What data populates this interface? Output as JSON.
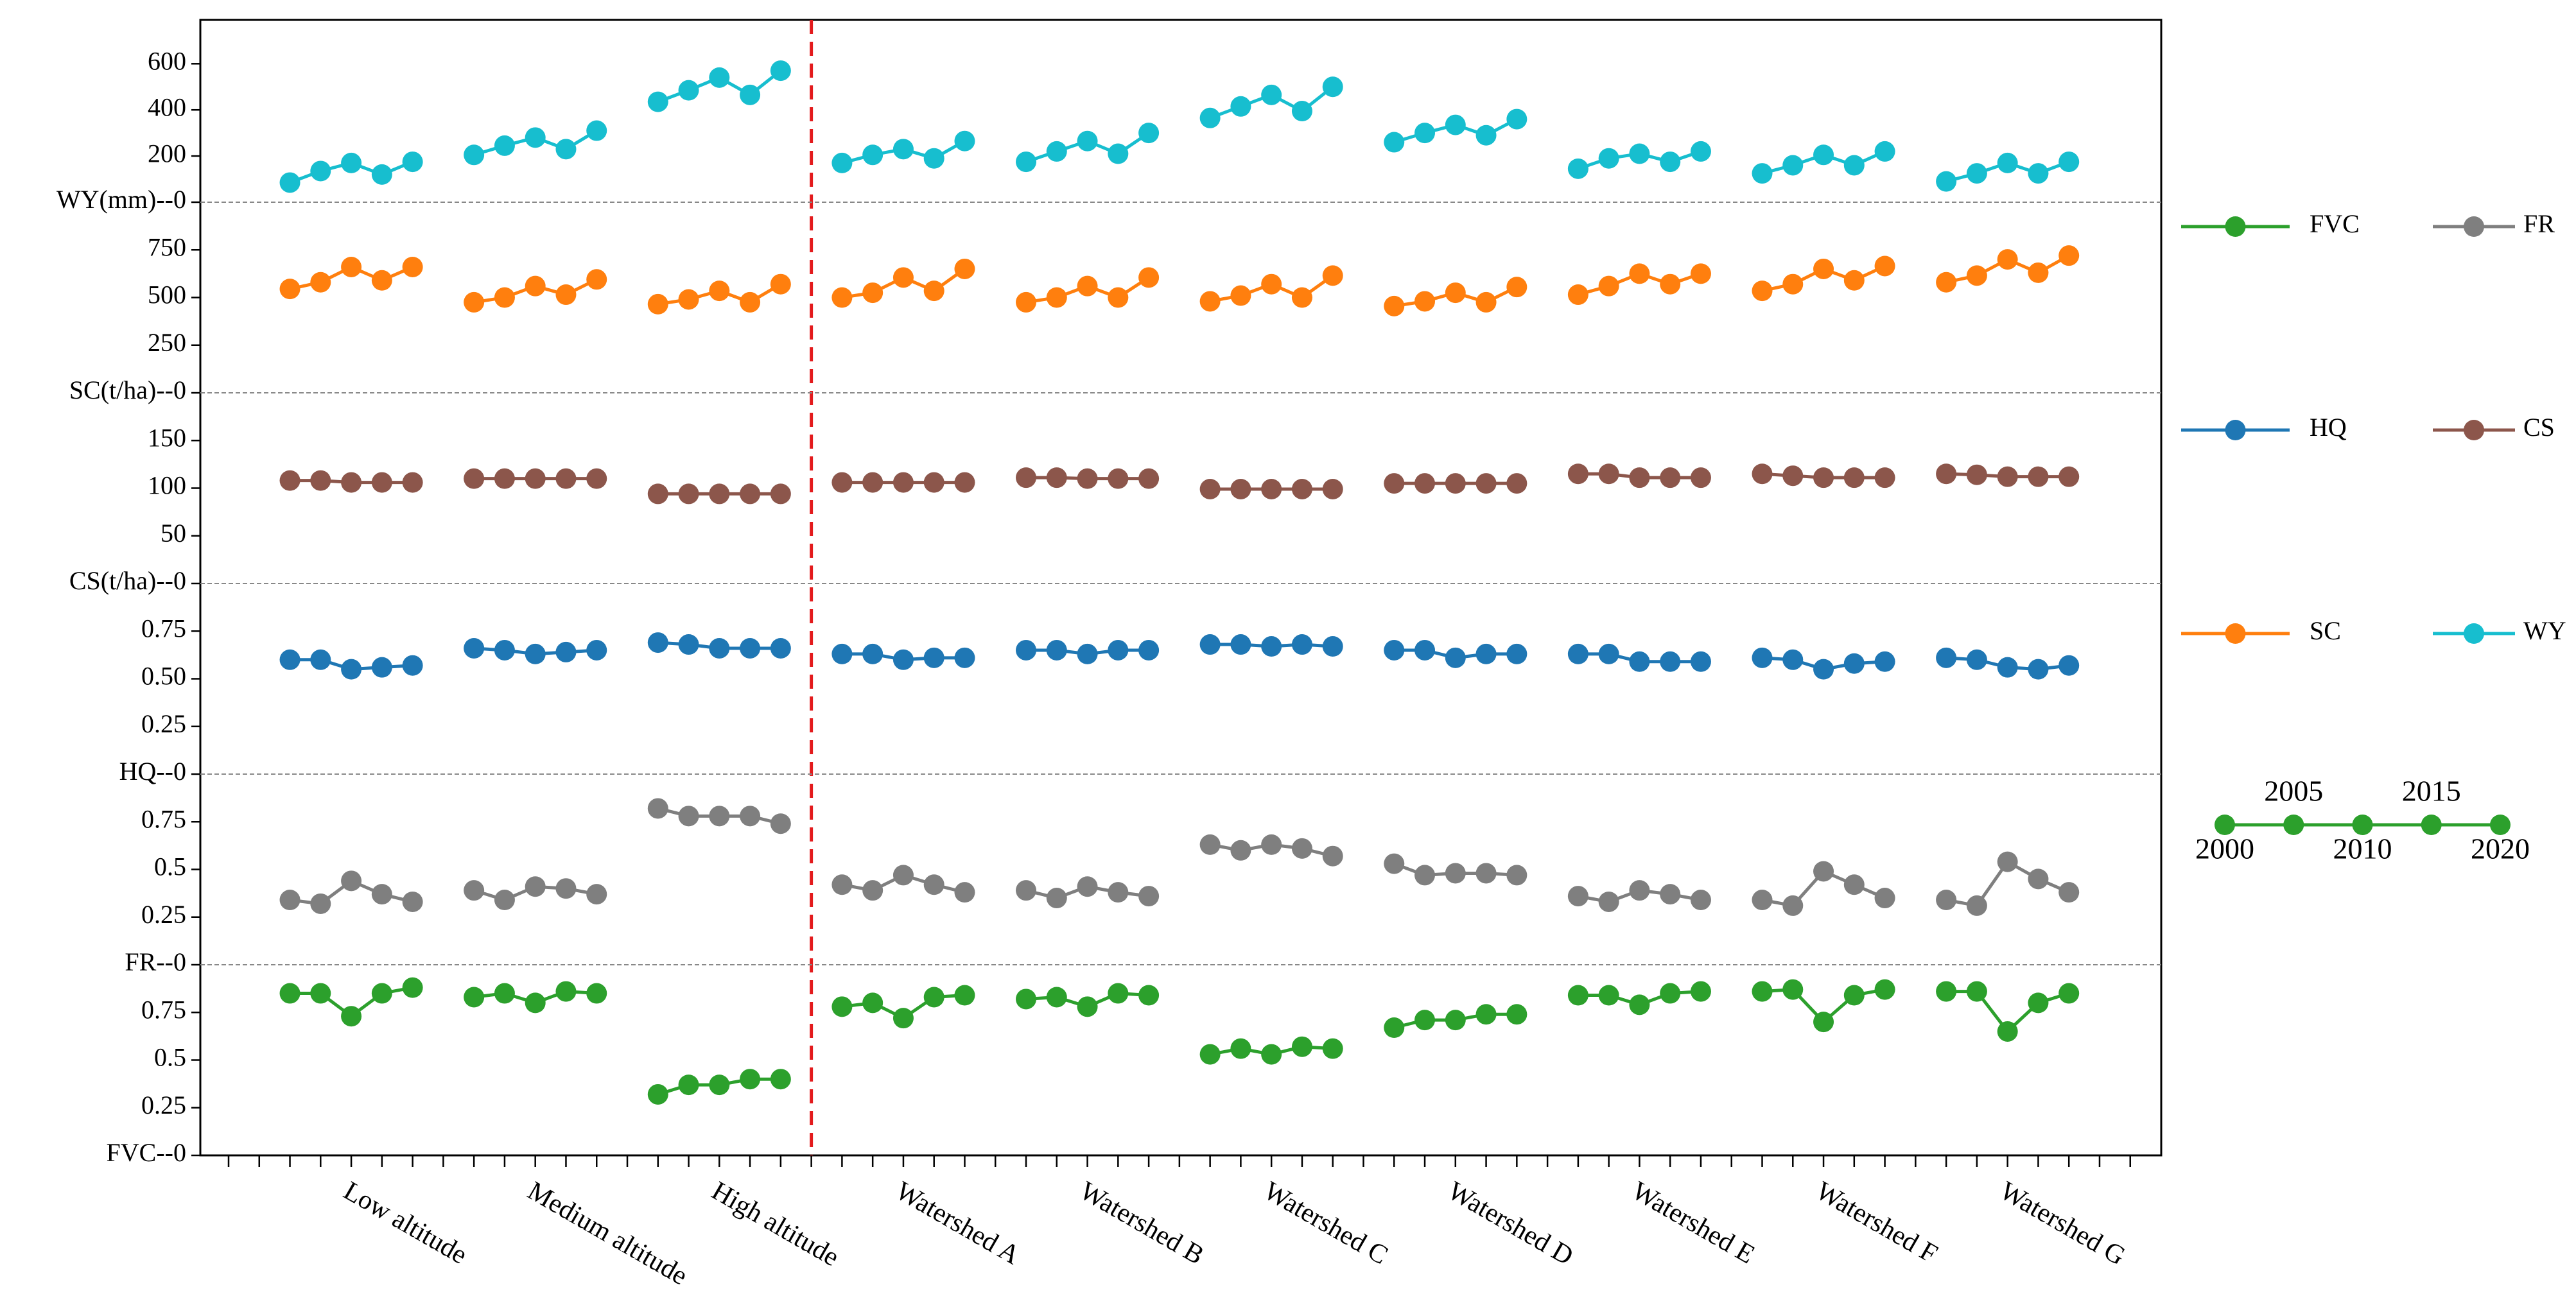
{
  "chart_data": {
    "type": "line",
    "categories": [
      "Low altitude",
      "Medium altitude",
      "High altitude",
      "Watershed A",
      "Watershed B",
      "Watershed C",
      "Watershed D",
      "Watershed E",
      "Watershed F",
      "Watershed G"
    ],
    "years": [
      2000,
      2005,
      2010,
      2015,
      2020
    ],
    "series": [
      {
        "name": "FVC",
        "color": "#2ca02c",
        "ylim": [
          0,
          1
        ],
        "yticks": [
          {
            "value": 0,
            "label": "FVC--0"
          },
          0.25,
          0.5,
          0.75
        ],
        "values": [
          [
            0.85,
            0.85,
            0.73,
            0.85,
            0.88
          ],
          [
            0.83,
            0.85,
            0.8,
            0.86,
            0.85
          ],
          [
            0.32,
            0.37,
            0.37,
            0.4,
            0.4
          ],
          [
            0.78,
            0.8,
            0.72,
            0.83,
            0.84
          ],
          [
            0.82,
            0.83,
            0.78,
            0.85,
            0.84
          ],
          [
            0.53,
            0.56,
            0.53,
            0.57,
            0.56
          ],
          [
            0.67,
            0.71,
            0.71,
            0.74,
            0.74
          ],
          [
            0.84,
            0.84,
            0.79,
            0.85,
            0.86
          ],
          [
            0.86,
            0.87,
            0.7,
            0.84,
            0.87
          ],
          [
            0.86,
            0.86,
            0.65,
            0.8,
            0.85
          ]
        ]
      },
      {
        "name": "FR",
        "color": "#7f7f7f",
        "ylim": [
          0,
          1
        ],
        "yticks": [
          {
            "value": 0,
            "label": "FR--0"
          },
          0.25,
          0.5,
          0.75
        ],
        "values": [
          [
            0.34,
            0.32,
            0.44,
            0.37,
            0.33
          ],
          [
            0.39,
            0.34,
            0.41,
            0.4,
            0.37
          ],
          [
            0.82,
            0.78,
            0.78,
            0.78,
            0.74
          ],
          [
            0.42,
            0.39,
            0.47,
            0.42,
            0.38
          ],
          [
            0.39,
            0.35,
            0.41,
            0.38,
            0.36
          ],
          [
            0.63,
            0.6,
            0.63,
            0.61,
            0.57
          ],
          [
            0.53,
            0.47,
            0.48,
            0.48,
            0.47
          ],
          [
            0.36,
            0.33,
            0.39,
            0.37,
            0.34
          ],
          [
            0.34,
            0.31,
            0.49,
            0.42,
            0.35
          ],
          [
            0.34,
            0.31,
            0.54,
            0.45,
            0.38
          ]
        ]
      },
      {
        "name": "HQ",
        "color": "#1f77b4",
        "ylim": [
          0,
          1
        ],
        "yticks": [
          {
            "value": 0,
            "label": "HQ--0"
          },
          0.25,
          {
            "value": 0.5,
            "label": "0.50"
          },
          0.75
        ],
        "values": [
          [
            0.6,
            0.6,
            0.55,
            0.56,
            0.57
          ],
          [
            0.66,
            0.65,
            0.63,
            0.64,
            0.65
          ],
          [
            0.69,
            0.68,
            0.66,
            0.66,
            0.66
          ],
          [
            0.63,
            0.63,
            0.6,
            0.61,
            0.61
          ],
          [
            0.65,
            0.65,
            0.63,
            0.65,
            0.65
          ],
          [
            0.68,
            0.68,
            0.67,
            0.68,
            0.67
          ],
          [
            0.65,
            0.65,
            0.61,
            0.63,
            0.63
          ],
          [
            0.63,
            0.63,
            0.59,
            0.59,
            0.59
          ],
          [
            0.61,
            0.6,
            0.55,
            0.58,
            0.59
          ],
          [
            0.61,
            0.6,
            0.56,
            0.55,
            0.57
          ]
        ]
      },
      {
        "name": "CS",
        "color": "#8c564b",
        "ylim": [
          0,
          200
        ],
        "yticks": [
          {
            "value": 0,
            "label": "CS(t/ha)--0"
          },
          50,
          100,
          150
        ],
        "values": [
          [
            108,
            108,
            106,
            106,
            106
          ],
          [
            110,
            110,
            110,
            110,
            110
          ],
          [
            94,
            94,
            94,
            94,
            94
          ],
          [
            106,
            106,
            106,
            106,
            106
          ],
          [
            111,
            111,
            110,
            110,
            110
          ],
          [
            99,
            99,
            99,
            99,
            99
          ],
          [
            105,
            105,
            105,
            105,
            105
          ],
          [
            115,
            115,
            111,
            111,
            111
          ],
          [
            115,
            113,
            111,
            111,
            111
          ],
          [
            115,
            114,
            112,
            112,
            112
          ]
        ]
      },
      {
        "name": "SC",
        "color": "#ff7f0e",
        "ylim": [
          0,
          1000
        ],
        "yticks": [
          {
            "value": 0,
            "label": "SC(t/ha)--0"
          },
          250,
          500,
          750
        ],
        "values": [
          [
            545,
            580,
            660,
            590,
            660
          ],
          [
            475,
            500,
            560,
            515,
            595
          ],
          [
            465,
            490,
            535,
            475,
            570
          ],
          [
            500,
            525,
            605,
            535,
            650
          ],
          [
            475,
            500,
            560,
            500,
            605
          ],
          [
            480,
            510,
            570,
            500,
            615
          ],
          [
            455,
            480,
            525,
            475,
            555
          ],
          [
            515,
            560,
            625,
            570,
            625
          ],
          [
            535,
            570,
            650,
            590,
            665
          ],
          [
            580,
            615,
            700,
            630,
            720
          ]
        ]
      },
      {
        "name": "WY",
        "color": "#17becf",
        "ylim": [
          0,
          790
        ],
        "yticks": [
          {
            "value": 0,
            "label": "WY(mm)--0"
          },
          200,
          400,
          600
        ],
        "values": [
          [
            85,
            135,
            170,
            120,
            175
          ],
          [
            205,
            245,
            280,
            230,
            310
          ],
          [
            435,
            485,
            540,
            465,
            570
          ],
          [
            170,
            205,
            230,
            190,
            265
          ],
          [
            175,
            220,
            265,
            210,
            300
          ],
          [
            365,
            415,
            465,
            395,
            500
          ],
          [
            260,
            300,
            335,
            290,
            360
          ],
          [
            145,
            190,
            210,
            175,
            220
          ],
          [
            125,
            160,
            205,
            160,
            220
          ],
          [
            90,
            125,
            170,
            125,
            175
          ]
        ]
      }
    ]
  }
}
